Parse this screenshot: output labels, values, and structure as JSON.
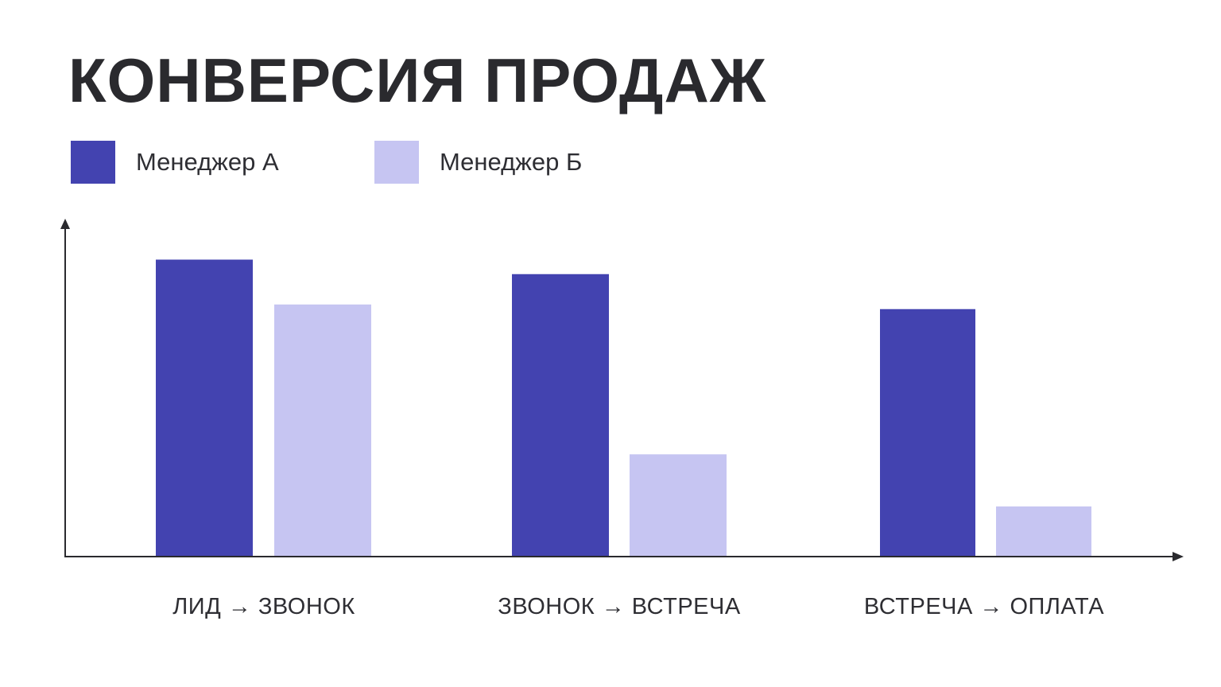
{
  "chart_data": {
    "type": "bar",
    "title": "КОНВЕРСИЯ ПРОДАЖ",
    "categories": [
      "ЛИД → ЗВОНОК",
      "ЗВОНОК → ВСТРЕЧА",
      "ВСТРЕЧА → ОПЛАТА"
    ],
    "series": [
      {
        "name": "Менеджер А",
        "color": "#4343b0",
        "values": [
          90,
          85.6,
          75
        ]
      },
      {
        "name": "Менеджер Б",
        "color": "#c6c5f2",
        "values": [
          76.4,
          31,
          15.2
        ]
      }
    ],
    "xlabel": "",
    "ylabel": "",
    "ylim": [
      0,
      100
    ],
    "grid": false,
    "legend": "top-left",
    "axis_color": "#2a2a2e"
  }
}
